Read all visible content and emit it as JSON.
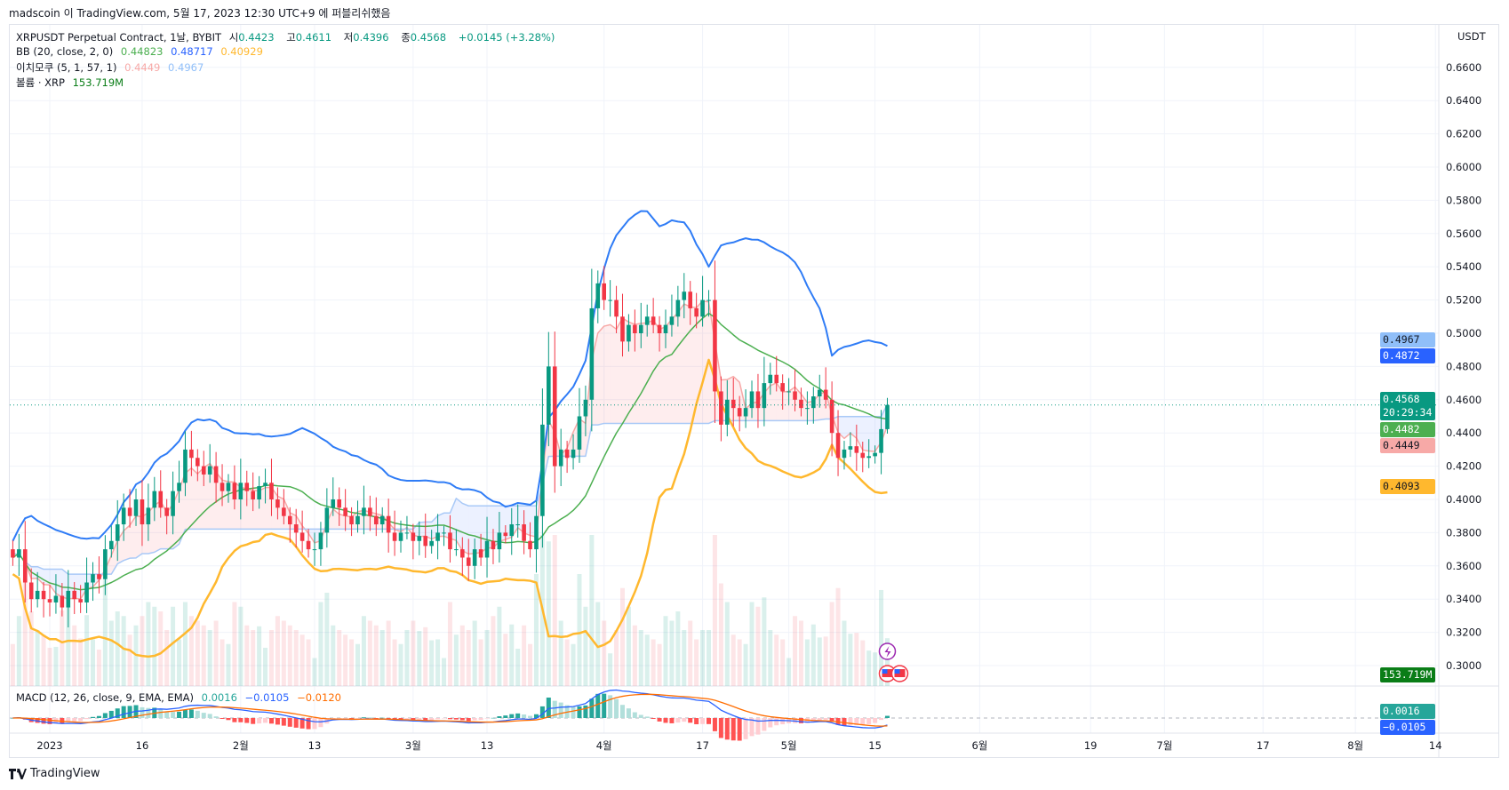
{
  "published_line": "madscoin 이 TradingView.com, 5월 17, 2023 12:30 UTC+9 에 퍼블리쉬했음",
  "legend": {
    "symbol": "XRPUSDT Perpetual Contract, 1날, BYBIT",
    "open_label": "시",
    "open": "0.4423",
    "high_label": "고",
    "high": "0.4611",
    "low_label": "저",
    "low": "0.4396",
    "close_label": "종",
    "close": "0.4568",
    "change": "+0.0145 (+3.28%)",
    "bb_title": "BB (20, close, 2, 0)",
    "bb_basis": "0.44823",
    "bb_upper": "0.48717",
    "bb_lower": "0.40929",
    "ichimoku_title": "이치모쿠 (5, 1, 57, 1)",
    "ichimoku_a": "0.4449",
    "ichimoku_b": "0.4967",
    "volume_title": "볼륨 · XRP",
    "volume": "153.719M",
    "macd_title": "MACD (12, 26, close, 9, EMA, EMA)",
    "macd_hist": "0.0016",
    "macd_line": "−0.0105",
    "macd_signal": "−0.0120"
  },
  "price_axis": {
    "unit": "USDT",
    "ticks": [
      "0.6600",
      "0.6400",
      "0.6200",
      "0.6000",
      "0.5800",
      "0.5600",
      "0.5400",
      "0.5200",
      "0.5000",
      "0.4800",
      "0.4600",
      "0.4400",
      "0.4200",
      "0.4000",
      "0.3800",
      "0.3600",
      "0.3400",
      "0.3200",
      "0.3000"
    ]
  },
  "price_labels": [
    {
      "text": "0.4967",
      "bg": "#90bff9",
      "fg": "#131722"
    },
    {
      "text": "0.4872",
      "bg": "#2962ff",
      "fg": "#ffffff"
    },
    {
      "text": "0.4568",
      "bg": "#089981",
      "fg": "#ffffff",
      "sub": "20:29:34"
    },
    {
      "text": "0.4482",
      "bg": "#4caf50",
      "fg": "#ffffff"
    },
    {
      "text": "0.4449",
      "bg": "#f7a9a7",
      "fg": "#131722"
    },
    {
      "text": "0.4093",
      "bg": "#ffb82e",
      "fg": "#131722"
    },
    {
      "text": "153.719M",
      "bg": "#0a7d17",
      "fg": "#ffffff"
    },
    {
      "text": "0.0016",
      "bg": "#26a69a",
      "fg": "#ffffff"
    },
    {
      "text": "−0.0105",
      "bg": "#2962ff",
      "fg": "#ffffff"
    }
  ],
  "time_axis": [
    {
      "label": "2023",
      "date": "2023-01-01"
    },
    {
      "label": "16",
      "date": "2023-01-16"
    },
    {
      "label": "2월",
      "date": "2023-02-01"
    },
    {
      "label": "13",
      "date": "2023-02-13"
    },
    {
      "label": "3월",
      "date": "2023-03-01"
    },
    {
      "label": "13",
      "date": "2023-03-13"
    },
    {
      "label": "4월",
      "date": "2023-04-01"
    },
    {
      "label": "17",
      "date": "2023-04-17"
    },
    {
      "label": "5월",
      "date": "2023-05-01"
    },
    {
      "label": "15",
      "date": "2023-05-15"
    },
    {
      "label": "6월",
      "date": "2023-06-01"
    },
    {
      "label": "19",
      "date": "2023-06-19"
    },
    {
      "label": "7월",
      "date": "2023-07-01"
    },
    {
      "label": "17",
      "date": "2023-07-17"
    },
    {
      "label": "8월",
      "date": "2023-08-01"
    },
    {
      "label": "14",
      "date": "2023-08-14"
    }
  ],
  "colors": {
    "up": "#089981",
    "down": "#f23645",
    "bb_basis": "#4caf50",
    "bb_upper": "#2f7cf6",
    "bb_lower": "#ffb82e",
    "ichi_a": "#f7a9a7",
    "ichi_b": "#a9c9f7",
    "macd": "#2962ff",
    "signal": "#ff6d00"
  },
  "icons": [
    "lightning-event-icon",
    "us-flag-event-icon",
    "us-flag-event-icon"
  ],
  "brand": "TradingView",
  "chart_data": {
    "type": "candlestick",
    "interval": "1D",
    "first_date": "2022-12-26",
    "ylim": [
      0.3,
      0.67
    ],
    "closes": [
      0.365,
      0.37,
      0.35,
      0.34,
      0.345,
      0.34,
      0.338,
      0.342,
      0.335,
      0.345,
      0.34,
      0.338,
      0.35,
      0.355,
      0.352,
      0.37,
      0.375,
      0.385,
      0.395,
      0.39,
      0.4,
      0.385,
      0.395,
      0.405,
      0.395,
      0.39,
      0.405,
      0.41,
      0.43,
      0.425,
      0.42,
      0.415,
      0.42,
      0.41,
      0.405,
      0.41,
      0.4,
      0.41,
      0.405,
      0.4,
      0.408,
      0.41,
      0.4,
      0.395,
      0.39,
      0.385,
      0.38,
      0.375,
      0.37,
      0.37,
      0.38,
      0.395,
      0.4,
      0.395,
      0.39,
      0.385,
      0.39,
      0.395,
      0.39,
      0.385,
      0.39,
      0.38,
      0.375,
      0.38,
      0.38,
      0.375,
      0.378,
      0.372,
      0.375,
      0.38,
      0.38,
      0.37,
      0.37,
      0.365,
      0.36,
      0.37,
      0.365,
      0.375,
      0.37,
      0.38,
      0.378,
      0.385,
      0.385,
      0.375,
      0.37,
      0.39,
      0.445,
      0.48,
      0.42,
      0.43,
      0.425,
      0.43,
      0.45,
      0.46,
      0.515,
      0.53,
      0.52,
      0.52,
      0.51,
      0.495,
      0.505,
      0.5,
      0.505,
      0.51,
      0.505,
      0.5,
      0.505,
      0.51,
      0.52,
      0.525,
      0.515,
      0.51,
      0.52,
      0.52,
      0.465,
      0.445,
      0.46,
      0.455,
      0.45,
      0.455,
      0.465,
      0.455,
      0.47,
      0.475,
      0.47,
      0.465,
      0.465,
      0.46,
      0.455,
      0.455,
      0.462,
      0.466,
      0.46,
      0.44,
      0.425,
      0.43,
      0.432,
      0.428,
      0.425,
      0.426,
      0.428,
      0.4423,
      0.4568
    ],
    "last_candle": {
      "open": 0.4423,
      "high": 0.4611,
      "low": 0.4396,
      "close": 0.4568
    },
    "last_volume_m": 153.719,
    "indicators": [
      "BB(20,close,2,0)",
      "Ichimoku(5,1,57,1)",
      "Volume",
      "MACD(12,26,close,9)"
    ]
  }
}
